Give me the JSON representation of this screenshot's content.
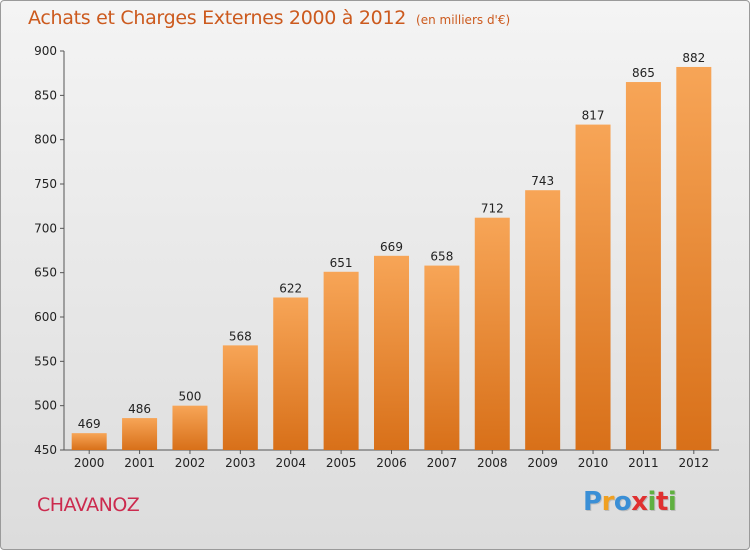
{
  "chart_data": {
    "type": "bar",
    "title": "Achats et Charges Externes 2000 à 2012",
    "subtitle": "(en milliers d'€)",
    "categories": [
      "2000",
      "2001",
      "2002",
      "2003",
      "2004",
      "2005",
      "2006",
      "2007",
      "2008",
      "2009",
      "2010",
      "2011",
      "2012"
    ],
    "values": [
      469,
      486,
      500,
      568,
      622,
      651,
      669,
      658,
      712,
      743,
      817,
      865,
      882
    ],
    "ylim": [
      450,
      900
    ],
    "yticks": [
      450,
      500,
      550,
      600,
      650,
      700,
      750,
      800,
      850,
      900
    ],
    "grid": false,
    "legend": "none",
    "colors": {
      "bar_top": "#f7a557",
      "bar_bottom": "#d87019",
      "title": "#cc5a1e"
    }
  },
  "place_name": "CHAVANOZ",
  "brand": {
    "letters": [
      "P",
      "r",
      "o",
      "x",
      "i",
      "t",
      "i"
    ],
    "colors": [
      "#3a8fd6",
      "#f0a020",
      "#3a8fd6",
      "#e03030",
      "#60b040",
      "#e03030",
      "#60b040"
    ]
  }
}
